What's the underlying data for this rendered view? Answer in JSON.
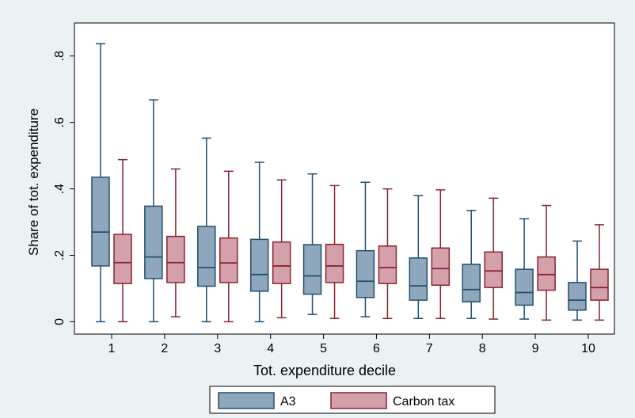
{
  "chart_data": {
    "type": "box",
    "xlabel": "Tot. expenditure decile",
    "ylabel": "Share of tot. expenditure",
    "ylim": [
      -0.03,
      0.89
    ],
    "y_ticks": [
      0,
      0.2,
      0.4,
      0.6,
      0.8
    ],
    "y_tick_labels": [
      "0",
      ".2",
      ".4",
      ".6",
      ".8"
    ],
    "categories": [
      "1",
      "2",
      "3",
      "4",
      "5",
      "6",
      "7",
      "8",
      "9",
      "10"
    ],
    "legend_position": "bottom",
    "grid": false,
    "series": [
      {
        "name": "A3",
        "fill": "#8fa7bc",
        "stroke": "#1f4f70",
        "boxes": [
          {
            "min": 0.0,
            "q1": 0.168,
            "median": 0.27,
            "q3": 0.435,
            "max": 0.837
          },
          {
            "min": 0.0,
            "q1": 0.13,
            "median": 0.195,
            "q3": 0.348,
            "max": 0.668
          },
          {
            "min": 0.0,
            "q1": 0.107,
            "median": 0.163,
            "q3": 0.287,
            "max": 0.553
          },
          {
            "min": 0.0,
            "q1": 0.092,
            "median": 0.142,
            "q3": 0.248,
            "max": 0.48
          },
          {
            "min": 0.022,
            "q1": 0.083,
            "median": 0.138,
            "q3": 0.232,
            "max": 0.445
          },
          {
            "min": 0.015,
            "q1": 0.073,
            "median": 0.122,
            "q3": 0.214,
            "max": 0.42
          },
          {
            "min": 0.01,
            "q1": 0.065,
            "median": 0.108,
            "q3": 0.192,
            "max": 0.38
          },
          {
            "min": 0.01,
            "q1": 0.06,
            "median": 0.097,
            "q3": 0.173,
            "max": 0.335
          },
          {
            "min": 0.008,
            "q1": 0.05,
            "median": 0.088,
            "q3": 0.158,
            "max": 0.31
          },
          {
            "min": 0.005,
            "q1": 0.035,
            "median": 0.065,
            "q3": 0.118,
            "max": 0.243
          }
        ]
      },
      {
        "name": "Carbon tax",
        "fill": "#d4a0aa",
        "stroke": "#8b2233",
        "boxes": [
          {
            "min": 0.0,
            "q1": 0.115,
            "median": 0.178,
            "q3": 0.263,
            "max": 0.488
          },
          {
            "min": 0.015,
            "q1": 0.118,
            "median": 0.178,
            "q3": 0.257,
            "max": 0.46
          },
          {
            "min": 0.0,
            "q1": 0.118,
            "median": 0.177,
            "q3": 0.252,
            "max": 0.453
          },
          {
            "min": 0.012,
            "q1": 0.115,
            "median": 0.168,
            "q3": 0.24,
            "max": 0.427
          },
          {
            "min": 0.01,
            "q1": 0.118,
            "median": 0.168,
            "q3": 0.233,
            "max": 0.41
          },
          {
            "min": 0.01,
            "q1": 0.115,
            "median": 0.163,
            "q3": 0.228,
            "max": 0.4
          },
          {
            "min": 0.01,
            "q1": 0.11,
            "median": 0.16,
            "q3": 0.222,
            "max": 0.397
          },
          {
            "min": 0.008,
            "q1": 0.103,
            "median": 0.153,
            "q3": 0.21,
            "max": 0.372
          },
          {
            "min": 0.005,
            "q1": 0.095,
            "median": 0.142,
            "q3": 0.195,
            "max": 0.35
          },
          {
            "min": 0.005,
            "q1": 0.065,
            "median": 0.103,
            "q3": 0.158,
            "max": 0.292
          }
        ]
      }
    ]
  }
}
